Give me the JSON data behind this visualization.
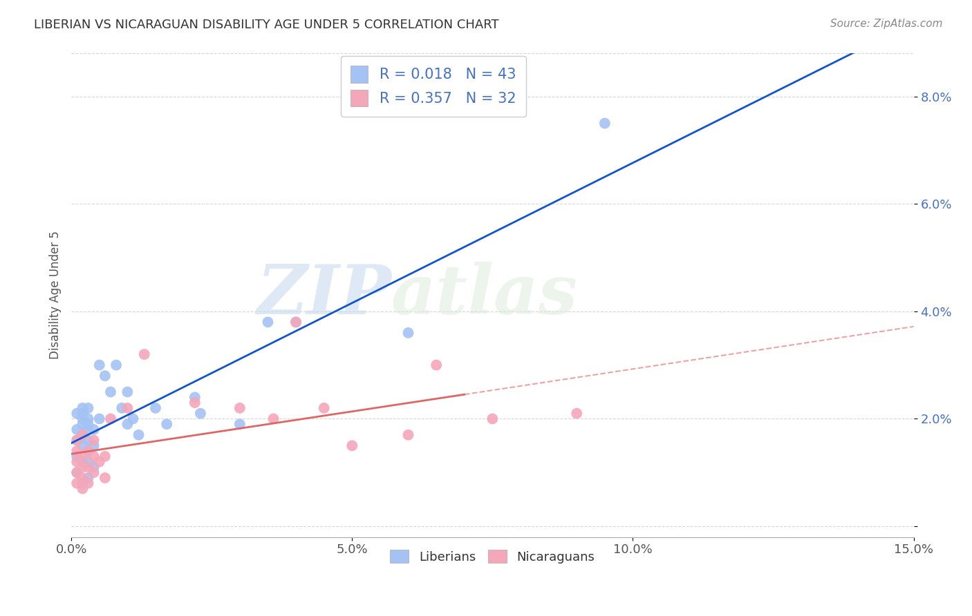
{
  "title": "LIBERIAN VS NICARAGUAN DISABILITY AGE UNDER 5 CORRELATION CHART",
  "source": "Source: ZipAtlas.com",
  "ylabel": "Disability Age Under 5",
  "xlim": [
    0.0,
    0.15
  ],
  "ylim": [
    -0.002,
    0.088
  ],
  "xticks": [
    0.0,
    0.05,
    0.1,
    0.15
  ],
  "xticklabels": [
    "0.0%",
    "5.0%",
    "10.0%",
    "15.0%"
  ],
  "yticks": [
    0.0,
    0.02,
    0.04,
    0.06,
    0.08
  ],
  "yticklabels": [
    "",
    "2.0%",
    "4.0%",
    "6.0%",
    "8.0%"
  ],
  "liberian_color": "#a4c2f4",
  "nicaraguan_color": "#f4a7b9",
  "liberian_line_color": "#1155cc",
  "nicaraguan_line_color": "#e06666",
  "nicaraguan_dashed_color": "#e06666",
  "liberian_R": 0.018,
  "liberian_N": 43,
  "nicaraguan_R": 0.357,
  "nicaraguan_N": 32,
  "watermark_zip": "ZIP",
  "watermark_atlas": "atlas",
  "liberian_x": [
    0.001,
    0.001,
    0.001,
    0.001,
    0.001,
    0.002,
    0.002,
    0.002,
    0.002,
    0.002,
    0.002,
    0.002,
    0.002,
    0.003,
    0.003,
    0.003,
    0.003,
    0.003,
    0.003,
    0.003,
    0.003,
    0.004,
    0.004,
    0.004,
    0.005,
    0.005,
    0.006,
    0.007,
    0.008,
    0.009,
    0.01,
    0.01,
    0.011,
    0.012,
    0.015,
    0.017,
    0.022,
    0.023,
    0.03,
    0.035,
    0.04,
    0.06,
    0.095
  ],
  "liberian_y": [
    0.01,
    0.013,
    0.016,
    0.018,
    0.021,
    0.008,
    0.012,
    0.015,
    0.017,
    0.019,
    0.021,
    0.022,
    0.02,
    0.009,
    0.012,
    0.014,
    0.016,
    0.018,
    0.02,
    0.022,
    0.019,
    0.011,
    0.015,
    0.018,
    0.02,
    0.03,
    0.028,
    0.025,
    0.03,
    0.022,
    0.019,
    0.025,
    0.02,
    0.017,
    0.022,
    0.019,
    0.024,
    0.021,
    0.019,
    0.038,
    0.038,
    0.036,
    0.075
  ],
  "nicaraguan_x": [
    0.001,
    0.001,
    0.001,
    0.001,
    0.001,
    0.002,
    0.002,
    0.002,
    0.002,
    0.002,
    0.003,
    0.003,
    0.003,
    0.004,
    0.004,
    0.004,
    0.005,
    0.006,
    0.006,
    0.007,
    0.01,
    0.013,
    0.022,
    0.03,
    0.036,
    0.04,
    0.045,
    0.05,
    0.06,
    0.065,
    0.075,
    0.09
  ],
  "nicaraguan_y": [
    0.008,
    0.01,
    0.012,
    0.014,
    0.016,
    0.007,
    0.009,
    0.011,
    0.013,
    0.017,
    0.008,
    0.011,
    0.014,
    0.01,
    0.013,
    0.016,
    0.012,
    0.013,
    0.009,
    0.02,
    0.022,
    0.032,
    0.023,
    0.022,
    0.02,
    0.038,
    0.022,
    0.015,
    0.017,
    0.03,
    0.02,
    0.021
  ],
  "background_color": "#ffffff",
  "grid_color": "#cccccc",
  "legend_box_color": "#f3f3f3"
}
